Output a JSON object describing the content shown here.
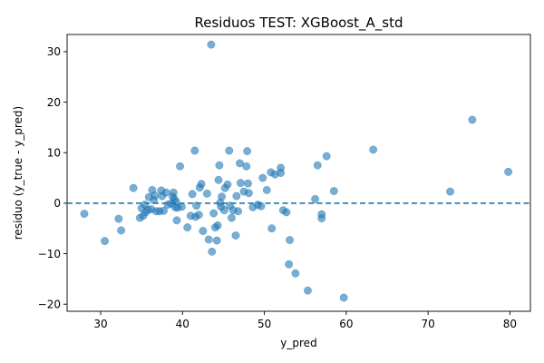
{
  "chart_data": {
    "type": "scatter",
    "title": "Residuos TEST: XGBoost_A_std",
    "xlabel": "y_pred",
    "ylabel": "residuo (y_true - y_pred)",
    "xlim": [
      25.9,
      82.5
    ],
    "ylim": [
      -21.4,
      33.4
    ],
    "xticks": [
      30,
      40,
      50,
      60,
      70,
      80
    ],
    "yticks": [
      -20,
      -10,
      0,
      10,
      20,
      30
    ],
    "grid": false,
    "reference_line": {
      "y": 0,
      "style": "dashed"
    },
    "series": [
      {
        "color": "#1f77b4",
        "points": [
          [
            28.0,
            -2.1
          ],
          [
            30.5,
            -7.5
          ],
          [
            32.2,
            -3.1
          ],
          [
            32.5,
            -5.4
          ],
          [
            34.0,
            3.0
          ],
          [
            34.8,
            -2.9
          ],
          [
            35.0,
            -1.0
          ],
          [
            35.2,
            -2.5
          ],
          [
            35.4,
            -0.3
          ],
          [
            35.5,
            -1.8
          ],
          [
            35.8,
            -1.3
          ],
          [
            35.9,
            1.2
          ],
          [
            36.2,
            -1.2
          ],
          [
            36.3,
            2.6
          ],
          [
            36.5,
            0.6
          ],
          [
            36.6,
            1.5
          ],
          [
            36.8,
            -1.6
          ],
          [
            37.2,
            -1.6
          ],
          [
            37.4,
            2.5
          ],
          [
            37.5,
            1.4
          ],
          [
            37.7,
            -1.5
          ],
          [
            38.0,
            2.1
          ],
          [
            38.2,
            -0.3
          ],
          [
            38.6,
            -0.1
          ],
          [
            38.8,
            1.3
          ],
          [
            38.9,
            2.1
          ],
          [
            39.0,
            0.8
          ],
          [
            39.1,
            -0.8
          ],
          [
            39.2,
            0.3
          ],
          [
            39.3,
            -3.4
          ],
          [
            39.4,
            -0.9
          ],
          [
            39.7,
            7.3
          ],
          [
            39.9,
            -0.7
          ],
          [
            40.6,
            -4.8
          ],
          [
            41.0,
            -2.5
          ],
          [
            41.2,
            1.8
          ],
          [
            41.5,
            10.4
          ],
          [
            41.6,
            -2.7
          ],
          [
            41.7,
            -0.5
          ],
          [
            42.0,
            -2.3
          ],
          [
            42.1,
            3.1
          ],
          [
            42.3,
            3.8
          ],
          [
            42.5,
            -5.5
          ],
          [
            43.0,
            1.9
          ],
          [
            43.2,
            -7.2
          ],
          [
            43.5,
            31.4
          ],
          [
            43.6,
            -9.6
          ],
          [
            43.8,
            -2.0
          ],
          [
            44.0,
            -4.8
          ],
          [
            44.2,
            -7.4
          ],
          [
            44.3,
            -4.4
          ],
          [
            44.4,
            4.6
          ],
          [
            44.5,
            7.5
          ],
          [
            44.6,
            0.1
          ],
          [
            44.7,
            -0.7
          ],
          [
            44.8,
            1.3
          ],
          [
            45.1,
            -1.4
          ],
          [
            45.2,
            3.0
          ],
          [
            45.5,
            3.7
          ],
          [
            45.7,
            10.4
          ],
          [
            45.8,
            -0.5
          ],
          [
            46.0,
            -2.9
          ],
          [
            46.2,
            -1.4
          ],
          [
            46.5,
            -6.4
          ],
          [
            46.6,
            1.4
          ],
          [
            46.8,
            -1.6
          ],
          [
            47.0,
            7.9
          ],
          [
            47.1,
            4.0
          ],
          [
            47.5,
            2.3
          ],
          [
            47.8,
            7.3
          ],
          [
            47.9,
            10.3
          ],
          [
            48.0,
            3.9
          ],
          [
            48.1,
            2.0
          ],
          [
            48.6,
            -0.8
          ],
          [
            49.2,
            -0.3
          ],
          [
            49.6,
            -0.6
          ],
          [
            49.8,
            5.0
          ],
          [
            50.3,
            2.6
          ],
          [
            50.8,
            6.1
          ],
          [
            50.9,
            -5.0
          ],
          [
            51.3,
            5.7
          ],
          [
            52.0,
            7.0
          ],
          [
            52.0,
            6.0
          ],
          [
            52.3,
            -1.4
          ],
          [
            52.7,
            -1.8
          ],
          [
            53.0,
            -12.1
          ],
          [
            53.1,
            -7.3
          ],
          [
            53.8,
            -13.9
          ],
          [
            55.3,
            -17.3
          ],
          [
            56.2,
            0.8
          ],
          [
            56.5,
            7.5
          ],
          [
            57.0,
            -2.2
          ],
          [
            57.0,
            -3.0
          ],
          [
            57.6,
            9.3
          ],
          [
            58.5,
            2.4
          ],
          [
            59.7,
            -18.7
          ],
          [
            63.3,
            10.6
          ],
          [
            72.7,
            2.3
          ],
          [
            75.4,
            16.5
          ],
          [
            79.8,
            6.2
          ]
        ]
      }
    ]
  }
}
